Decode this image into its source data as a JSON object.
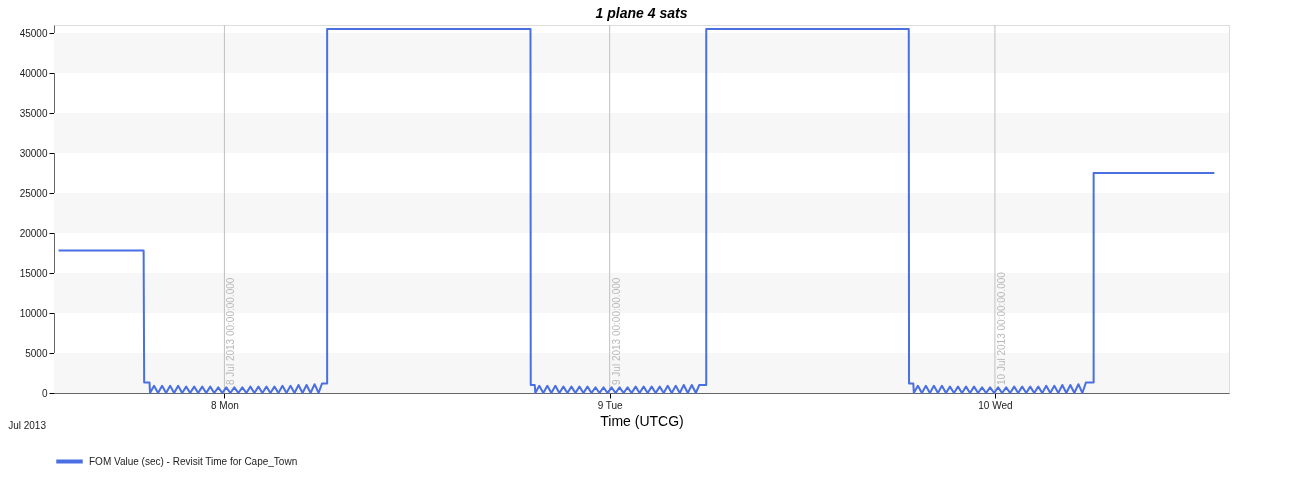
{
  "chart_data": {
    "type": "line",
    "title": "1 plane 4 sats",
    "xlabel": "Time (UTCG)",
    "annotations": [
      "Jul 2013"
    ],
    "xlim": [
      "2013-07-07T13:23",
      "2013-07-10T14:35"
    ],
    "xticks": [
      {
        "value": "2013-07-08",
        "label": "8 Mon"
      },
      {
        "value": "2013-07-09",
        "label": "9 Tue"
      },
      {
        "value": "2013-07-10",
        "label": "10 Wed"
      }
    ],
    "ylim": [
      0,
      46000
    ],
    "yticks": [
      0,
      5000,
      10000,
      15000,
      20000,
      25000,
      30000,
      35000,
      40000,
      45000
    ],
    "grid": false,
    "legend": "bottom left",
    "marker": "none",
    "line_style": "solid",
    "ref_lines": [
      {
        "axis": "x",
        "value": "2013-07-08",
        "label": "8 Jul 2013 00:00:00.000",
        "color": "#c0c0c0"
      },
      {
        "axis": "x",
        "value": "2013-07-09",
        "label": "9 Jul 2013 00:00:00.000",
        "color": "#c0c0c0"
      },
      {
        "axis": "x",
        "value": "2013-07-10",
        "label": "10 Jul 2013 00:00:00.000",
        "color": "#c0c0c0"
      }
    ],
    "bands": [
      {
        "axis": "y",
        "from": 0,
        "to": 5000,
        "color": "#f7f7f7"
      },
      {
        "axis": "y",
        "from": 10000,
        "to": 15000,
        "color": "#f7f7f7"
      },
      {
        "axis": "y",
        "from": 20000,
        "to": 25000,
        "color": "#f7f7f7"
      },
      {
        "axis": "y",
        "from": 30000,
        "to": 35000,
        "color": "#f7f7f7"
      },
      {
        "axis": "y",
        "from": 40000,
        "to": 45000,
        "color": "#f7f7f7"
      }
    ],
    "series": [
      {
        "name": "FOM Value (sec) - Revisit Time for Cape_Town",
        "color": "#4a6fe3",
        "x": [
          "2013-07-07T13:40",
          "2013-07-07T18:58",
          "2013-07-07T19:00",
          "2013-07-07T19:20",
          "2013-07-07T19:22",
          "2013-07-07T19:37",
          "2013-07-07T19:52",
          "2013-07-07T20:07",
          "2013-07-07T20:22",
          "2013-07-07T20:37",
          "2013-07-07T20:52",
          "2013-07-07T21:07",
          "2013-07-07T21:22",
          "2013-07-07T21:37",
          "2013-07-07T21:52",
          "2013-07-07T22:07",
          "2013-07-07T22:22",
          "2013-07-07T22:37",
          "2013-07-07T22:52",
          "2013-07-07T23:07",
          "2013-07-07T23:22",
          "2013-07-07T23:37",
          "2013-07-07T23:52",
          "2013-07-08T00:07",
          "2013-07-08T00:22",
          "2013-07-08T00:37",
          "2013-07-08T00:52",
          "2013-07-08T01:07",
          "2013-07-08T01:22",
          "2013-07-08T01:37",
          "2013-07-08T01:52",
          "2013-07-08T02:07",
          "2013-07-08T02:22",
          "2013-07-08T02:37",
          "2013-07-08T02:52",
          "2013-07-08T03:07",
          "2013-07-08T03:22",
          "2013-07-08T03:37",
          "2013-07-08T03:52",
          "2013-07-08T04:07",
          "2013-07-08T04:22",
          "2013-07-08T04:37",
          "2013-07-08T04:52",
          "2013-07-08T05:07",
          "2013-07-08T05:22",
          "2013-07-08T05:37",
          "2013-07-08T05:52",
          "2013-07-08T06:05",
          "2013-07-08T06:24",
          "2013-07-08T06:24",
          "2013-07-08T19:04",
          "2013-07-08T19:05",
          "2013-07-08T19:20",
          "2013-07-08T19:22",
          "2013-07-08T19:37",
          "2013-07-08T19:52",
          "2013-07-08T20:07",
          "2013-07-08T20:22",
          "2013-07-08T20:37",
          "2013-07-08T20:52",
          "2013-07-08T21:07",
          "2013-07-08T21:22",
          "2013-07-08T21:37",
          "2013-07-08T21:52",
          "2013-07-08T22:07",
          "2013-07-08T22:22",
          "2013-07-08T22:37",
          "2013-07-08T22:52",
          "2013-07-08T23:07",
          "2013-07-08T23:22",
          "2013-07-08T23:37",
          "2013-07-08T23:52",
          "2013-07-09T00:07",
          "2013-07-09T00:22",
          "2013-07-09T00:37",
          "2013-07-09T00:52",
          "2013-07-09T01:07",
          "2013-07-09T01:22",
          "2013-07-09T01:37",
          "2013-07-09T01:52",
          "2013-07-09T02:07",
          "2013-07-09T02:22",
          "2013-07-09T02:37",
          "2013-07-09T02:52",
          "2013-07-09T03:07",
          "2013-07-09T03:22",
          "2013-07-09T03:37",
          "2013-07-09T03:52",
          "2013-07-09T04:07",
          "2013-07-09T04:22",
          "2013-07-09T04:37",
          "2013-07-09T04:52",
          "2013-07-09T05:07",
          "2013-07-09T05:22",
          "2013-07-09T05:35",
          "2013-07-09T06:01",
          "2013-07-09T06:01",
          "2013-07-09T18:38",
          "2013-07-09T18:39",
          "2013-07-09T18:55",
          "2013-07-09T18:57",
          "2013-07-09T19:12",
          "2013-07-09T19:27",
          "2013-07-09T19:42",
          "2013-07-09T19:57",
          "2013-07-09T20:12",
          "2013-07-09T20:27",
          "2013-07-09T20:42",
          "2013-07-09T20:57",
          "2013-07-09T21:12",
          "2013-07-09T21:27",
          "2013-07-09T21:42",
          "2013-07-09T21:57",
          "2013-07-09T22:12",
          "2013-07-09T22:27",
          "2013-07-09T22:42",
          "2013-07-09T22:57",
          "2013-07-09T23:12",
          "2013-07-09T23:27",
          "2013-07-09T23:42",
          "2013-07-09T23:57",
          "2013-07-10T00:12",
          "2013-07-10T00:27",
          "2013-07-10T00:42",
          "2013-07-10T00:57",
          "2013-07-10T01:12",
          "2013-07-10T01:27",
          "2013-07-10T01:42",
          "2013-07-10T01:57",
          "2013-07-10T02:12",
          "2013-07-10T02:27",
          "2013-07-10T02:42",
          "2013-07-10T02:57",
          "2013-07-10T03:12",
          "2013-07-10T03:27",
          "2013-07-10T03:42",
          "2013-07-10T03:57",
          "2013-07-10T04:12",
          "2013-07-10T04:27",
          "2013-07-10T04:42",
          "2013-07-10T04:57",
          "2013-07-10T05:12",
          "2013-07-10T05:27",
          "2013-07-10T05:40",
          "2013-07-10T06:09",
          "2013-07-10T06:09",
          "2013-07-10T13:40"
        ],
        "values": [
          17800,
          17800,
          1300,
          1300,
          0,
          900,
          0,
          900,
          0,
          900,
          0,
          900,
          0,
          800,
          0,
          800,
          0,
          800,
          0,
          800,
          0,
          700,
          0,
          700,
          0,
          700,
          0,
          700,
          0,
          800,
          0,
          800,
          0,
          800,
          0,
          800,
          0,
          900,
          0,
          900,
          0,
          1000,
          0,
          1000,
          0,
          1100,
          0,
          1200,
          1200,
          45500,
          45500,
          1000,
          1000,
          0,
          900,
          0,
          900,
          0,
          900,
          0,
          800,
          0,
          800,
          0,
          800,
          0,
          800,
          0,
          700,
          0,
          700,
          0,
          700,
          0,
          700,
          0,
          700,
          0,
          800,
          0,
          800,
          0,
          800,
          0,
          800,
          0,
          900,
          0,
          900,
          0,
          1000,
          0,
          1000,
          0,
          1000,
          1000,
          45500,
          45500,
          1200,
          1200,
          0,
          900,
          0,
          900,
          0,
          900,
          0,
          900,
          0,
          800,
          0,
          800,
          0,
          800,
          0,
          800,
          0,
          700,
          0,
          700,
          0,
          700,
          0,
          700,
          0,
          800,
          0,
          800,
          0,
          800,
          0,
          800,
          0,
          900,
          0,
          900,
          0,
          1000,
          0,
          1000,
          0,
          1100,
          0,
          1300,
          1300,
          27500,
          27500
        ]
      }
    ]
  }
}
